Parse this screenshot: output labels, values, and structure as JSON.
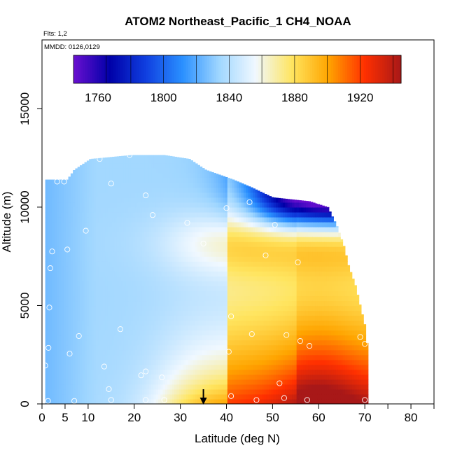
{
  "chart_data": {
    "type": "heatmap",
    "title": "ATOM2 Northeast_Pacific_1 CH4_NOAA",
    "flights_note": "Flts: 1,2",
    "dates_note": "MMDD: 0126,0129",
    "xlabel": "Latitude (deg N)",
    "ylabel": "Altitude (m)",
    "xlim": [
      0,
      85
    ],
    "ylim": [
      0,
      18500
    ],
    "x_ticks": [
      "0",
      "5",
      "10",
      "20",
      "30",
      "40",
      "50",
      "60",
      "70",
      "80"
    ],
    "x_tick_values": [
      0,
      5,
      10,
      20,
      30,
      40,
      50,
      60,
      70,
      80
    ],
    "y_ticks": [
      "0",
      "5000",
      "10000",
      "15000"
    ],
    "y_tick_values": [
      0,
      5000,
      10000,
      15000
    ],
    "colorbar": {
      "range": [
        1745,
        1945
      ],
      "ticks": [
        "1760",
        "1800",
        "1840",
        "1880",
        "1920"
      ],
      "tick_values": [
        1760,
        1800,
        1840,
        1880,
        1920
      ],
      "boundaries": [
        1765,
        1780,
        1800,
        1820,
        1840,
        1860,
        1880,
        1900,
        1920,
        1940
      ],
      "colors": [
        "#6a0fd0",
        "#0000a8",
        "#1040e0",
        "#2a90ff",
        "#9fd6ff",
        "#f0f8ff",
        "#ffe560",
        "#ffa500",
        "#ff3000",
        "#a81818"
      ]
    },
    "grid": false,
    "max_altitude_profile": [
      {
        "lat": 1.5,
        "alt": 11400
      },
      {
        "lat": 5.5,
        "alt": 11400
      },
      {
        "lat": 7,
        "alt": 11900
      },
      {
        "lat": 10.5,
        "alt": 12450
      },
      {
        "lat": 19.5,
        "alt": 12650
      },
      {
        "lat": 26.5,
        "alt": 12650
      },
      {
        "lat": 32,
        "alt": 12450
      },
      {
        "lat": 35.5,
        "alt": 11900
      },
      {
        "lat": 41.5,
        "alt": 11400
      },
      {
        "lat": 45.5,
        "alt": 11000
      },
      {
        "lat": 50,
        "alt": 10500
      },
      {
        "lat": 58,
        "alt": 10300
      },
      {
        "lat": 62,
        "alt": 10000
      },
      {
        "lat": 64,
        "alt": 9000
      },
      {
        "lat": 65.5,
        "alt": 8000
      },
      {
        "lat": 66.5,
        "alt": 7000
      },
      {
        "lat": 68,
        "alt": 6000
      },
      {
        "lat": 69,
        "alt": 5000
      },
      {
        "lat": 70,
        "alt": 4000
      },
      {
        "lat": 70.5,
        "alt": 3000
      },
      {
        "lat": 70.7,
        "alt": 0
      }
    ],
    "min_latitude_at_surface": 0.7,
    "samples": [
      {
        "lat": 1.3,
        "alt": 150
      },
      {
        "lat": 0.7,
        "alt": 1950
      },
      {
        "lat": 1.4,
        "alt": 2850
      },
      {
        "lat": 1.6,
        "alt": 4900
      },
      {
        "lat": 1.8,
        "alt": 6900
      },
      {
        "lat": 2.2,
        "alt": 7750
      },
      {
        "lat": 3.3,
        "alt": 11300
      },
      {
        "lat": 4.8,
        "alt": 11300
      },
      {
        "lat": 5.5,
        "alt": 7850
      },
      {
        "lat": 6.0,
        "alt": 2550
      },
      {
        "lat": 7.0,
        "alt": 150
      },
      {
        "lat": 8.0,
        "alt": 3450
      },
      {
        "lat": 9.5,
        "alt": 8800
      },
      {
        "lat": 12.5,
        "alt": 12450
      },
      {
        "lat": 13.5,
        "alt": 1900
      },
      {
        "lat": 14.5,
        "alt": 750
      },
      {
        "lat": 15.0,
        "alt": 200
      },
      {
        "lat": 15.0,
        "alt": 11200
      },
      {
        "lat": 17.0,
        "alt": 3800
      },
      {
        "lat": 19.0,
        "alt": 12650
      },
      {
        "lat": 21.5,
        "alt": 1450
      },
      {
        "lat": 22.5,
        "alt": 1650
      },
      {
        "lat": 22.5,
        "alt": 10600
      },
      {
        "lat": 22.5,
        "alt": 200
      },
      {
        "lat": 24.0,
        "alt": 9600
      },
      {
        "lat": 26.0,
        "alt": 1350
      },
      {
        "lat": 26.5,
        "alt": 200
      },
      {
        "lat": 31.5,
        "alt": 9200
      },
      {
        "lat": 35.0,
        "alt": 8150
      },
      {
        "lat": 40.0,
        "alt": 9950
      },
      {
        "lat": 40.5,
        "alt": 2650
      },
      {
        "lat": 41.0,
        "alt": 4450
      },
      {
        "lat": 41.0,
        "alt": 400
      },
      {
        "lat": 45.0,
        "alt": 10250
      },
      {
        "lat": 45.5,
        "alt": 3550
      },
      {
        "lat": 46.5,
        "alt": 200
      },
      {
        "lat": 48.5,
        "alt": 7550
      },
      {
        "lat": 50.5,
        "alt": 9100
      },
      {
        "lat": 51.5,
        "alt": 1050
      },
      {
        "lat": 52.5,
        "alt": 300
      },
      {
        "lat": 53.0,
        "alt": 3500
      },
      {
        "lat": 55.5,
        "alt": 7200
      },
      {
        "lat": 56.0,
        "alt": 3200
      },
      {
        "lat": 57.5,
        "alt": 200
      },
      {
        "lat": 58.0,
        "alt": 2950
      },
      {
        "lat": 60.0,
        "alt": 10300
      },
      {
        "lat": 62.5,
        "alt": 10300
      },
      {
        "lat": 69.0,
        "alt": 3400
      },
      {
        "lat": 70.0,
        "alt": 3050
      },
      {
        "lat": 70.0,
        "alt": 200
      }
    ],
    "location_marker_latitude": 35
  }
}
